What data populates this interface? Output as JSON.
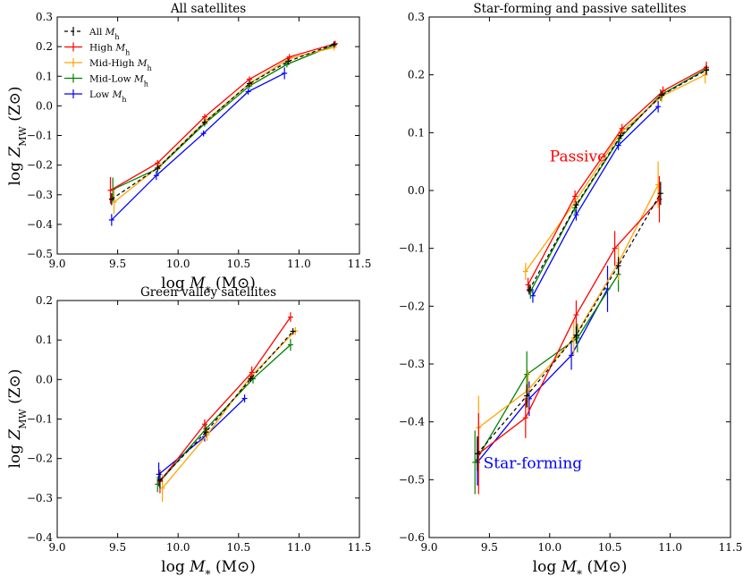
{
  "colors": {
    "all": "#000000",
    "high": "#ff0000",
    "midhigh": "#ffa500",
    "midlow": "#008000",
    "low": "#0000ff"
  },
  "chart_data": [
    {
      "id": "p1",
      "type": "line",
      "title": "All satellites",
      "xlabel": "log M* (M⊙)",
      "ylabel": "log Z_MW (Z⊙)",
      "xlim": [
        9.0,
        11.5
      ],
      "ylim": [
        -0.5,
        0.3
      ],
      "xticks": [
        9.0,
        9.5,
        10.0,
        10.5,
        11.0,
        11.5
      ],
      "xtick_labels": [
        "9.0",
        "9.5",
        "10.0",
        "10.5",
        "11.0",
        "11.5"
      ],
      "yticks": [
        -0.5,
        -0.4,
        -0.3,
        -0.2,
        -0.1,
        0.0,
        0.1,
        0.2,
        0.3
      ],
      "ytick_labels": [
        "−0.5",
        "−0.4",
        "−0.3",
        "−0.2",
        "−0.1",
        "0.0",
        "0.1",
        "0.2",
        "0.3"
      ],
      "legend": {
        "position": "top-left",
        "entries": [
          {
            "key": "all",
            "label": "All Mh"
          },
          {
            "key": "high",
            "label": "High Mh"
          },
          {
            "key": "midhigh",
            "label": "Mid-High Mh"
          },
          {
            "key": "midlow",
            "label": "Mid-Low Mh"
          },
          {
            "key": "low",
            "label": "Low Mh"
          }
        ]
      },
      "series": [
        {
          "key": "low",
          "points": [
            [
              9.45,
              -0.385,
              0.02
            ],
            [
              9.82,
              -0.235,
              0.015
            ],
            [
              10.21,
              -0.093,
              0.01
            ],
            [
              10.58,
              0.048,
              0.01
            ],
            [
              10.88,
              0.11,
              0.02
            ]
          ]
        },
        {
          "key": "midlow",
          "points": [
            [
              9.46,
              -0.282,
              0.04
            ],
            [
              9.83,
              -0.212,
              0.015
            ],
            [
              10.22,
              -0.06,
              0.01
            ],
            [
              10.59,
              0.067,
              0.01
            ],
            [
              10.9,
              0.14,
              0.01
            ],
            [
              11.29,
              0.205,
              0.01
            ]
          ]
        },
        {
          "key": "midhigh",
          "points": [
            [
              9.47,
              -0.325,
              0.04
            ],
            [
              9.84,
              -0.205,
              0.01
            ],
            [
              10.23,
              -0.05,
              0.01
            ],
            [
              10.6,
              0.078,
              0.01
            ],
            [
              10.92,
              0.16,
              0.01
            ],
            [
              11.29,
              0.197,
              0.01
            ]
          ]
        },
        {
          "key": "high",
          "points": [
            [
              9.44,
              -0.285,
              0.045
            ],
            [
              9.83,
              -0.193,
              0.01
            ],
            [
              10.22,
              -0.037,
              0.01
            ],
            [
              10.59,
              0.09,
              0.01
            ],
            [
              10.92,
              0.165,
              0.01
            ],
            [
              11.3,
              0.21,
              0.01
            ]
          ]
        },
        {
          "key": "all",
          "dashed": true,
          "points": [
            [
              9.45,
              -0.315,
              0.02
            ],
            [
              9.83,
              -0.21,
              0.01
            ],
            [
              10.22,
              -0.055,
              0.01
            ],
            [
              10.59,
              0.075,
              0.01
            ],
            [
              10.91,
              0.15,
              0.01
            ],
            [
              11.29,
              0.208,
              0.01
            ]
          ]
        }
      ]
    },
    {
      "id": "p2",
      "type": "line",
      "title": "Green valley satellites",
      "xlabel": "log M* (M⊙)",
      "ylabel": "log Z_MW (Z⊙)",
      "xlim": [
        9.0,
        11.5
      ],
      "ylim": [
        -0.4,
        0.2
      ],
      "xticks": [
        9.0,
        9.5,
        10.0,
        10.5,
        11.0,
        11.5
      ],
      "xtick_labels": [
        "9.0",
        "9.5",
        "10.0",
        "10.5",
        "11.0",
        "11.5"
      ],
      "yticks": [
        -0.4,
        -0.3,
        -0.2,
        -0.1,
        0.0,
        0.1,
        0.2
      ],
      "ytick_labels": [
        "−0.4",
        "−0.3",
        "−0.2",
        "−0.1",
        "0.0",
        "0.1",
        "0.2"
      ],
      "series": [
        {
          "key": "low",
          "points": [
            [
              9.84,
              -0.24,
              0.03
            ],
            [
              10.22,
              -0.145,
              0.012
            ],
            [
              10.55,
              -0.048,
              0.01
            ]
          ]
        },
        {
          "key": "midlow",
          "points": [
            [
              9.83,
              -0.265,
              0.02
            ],
            [
              10.23,
              -0.125,
              0.012
            ],
            [
              10.62,
              0.002,
              0.012
            ],
            [
              10.93,
              0.088,
              0.015
            ]
          ]
        },
        {
          "key": "midhigh",
          "points": [
            [
              9.87,
              -0.275,
              0.035
            ],
            [
              10.24,
              -0.14,
              0.015
            ],
            [
              10.6,
              0.007,
              0.012
            ],
            [
              10.97,
              0.123,
              0.01
            ]
          ]
        },
        {
          "key": "high",
          "points": [
            [
              9.85,
              -0.258,
              0.03
            ],
            [
              10.22,
              -0.113,
              0.012
            ],
            [
              10.61,
              0.018,
              0.015
            ],
            [
              10.93,
              0.158,
              0.012
            ]
          ]
        },
        {
          "key": "all",
          "dashed": true,
          "points": [
            [
              9.85,
              -0.255,
              0.02
            ],
            [
              10.23,
              -0.133,
              0.01
            ],
            [
              10.6,
              0.002,
              0.008
            ],
            [
              10.95,
              0.122,
              0.008
            ]
          ]
        }
      ]
    },
    {
      "id": "p3",
      "type": "line",
      "title": "Star-forming and passive satellites",
      "xlabel": "log M* (M⊙)",
      "ylabel": "",
      "xlim": [
        9.0,
        11.5
      ],
      "ylim": [
        -0.6,
        0.3
      ],
      "xticks": [
        9.0,
        9.5,
        10.0,
        10.5,
        11.0,
        11.5
      ],
      "xtick_labels": [
        "9.0",
        "9.5",
        "10.0",
        "10.5",
        "11.0",
        "11.5"
      ],
      "yticks": [
        -0.6,
        -0.5,
        -0.4,
        -0.3,
        -0.2,
        -0.1,
        0.0,
        0.1,
        0.2,
        0.3
      ],
      "ytick_labels": [
        "−0.6",
        "−0.5",
        "−0.4",
        "−0.3",
        "−0.2",
        "−0.1",
        "0.0",
        "0.1",
        "0.2",
        "0.3"
      ],
      "annotations": [
        {
          "text": "Passive",
          "x": 10.0,
          "y": 0.05,
          "color": "#ff0000"
        },
        {
          "text": "Star-forming",
          "x": 9.45,
          "y": -0.48,
          "color": "#0000ff"
        }
      ],
      "series": [
        {
          "key": "low",
          "points": [
            [
              9.86,
              -0.182,
              0.012
            ],
            [
              10.22,
              -0.042,
              0.01
            ],
            [
              10.57,
              0.078,
              0.008
            ],
            [
              10.9,
              0.145,
              0.01
            ]
          ]
        },
        {
          "key": "midlow",
          "points": [
            [
              9.84,
              -0.175,
              0.012
            ],
            [
              10.21,
              -0.03,
              0.01
            ],
            [
              10.58,
              0.09,
              0.008
            ],
            [
              10.92,
              0.165,
              0.01
            ],
            [
              11.3,
              0.21,
              0.01
            ]
          ]
        },
        {
          "key": "midhigh",
          "points": [
            [
              9.8,
              -0.14,
              0.015
            ],
            [
              10.21,
              -0.02,
              0.01
            ],
            [
              10.59,
              0.1,
              0.008
            ],
            [
              10.93,
              0.163,
              0.01
            ],
            [
              11.29,
              0.2,
              0.015
            ]
          ]
        },
        {
          "key": "high",
          "points": [
            [
              9.82,
              -0.163,
              0.012
            ],
            [
              10.21,
              -0.01,
              0.01
            ],
            [
              10.6,
              0.107,
              0.008
            ],
            [
              10.94,
              0.172,
              0.008
            ],
            [
              11.3,
              0.213,
              0.01
            ]
          ]
        },
        {
          "key": "all",
          "dashed": true,
          "points": [
            [
              9.83,
              -0.172,
              0.008
            ],
            [
              10.22,
              -0.025,
              0.006
            ],
            [
              10.59,
              0.095,
              0.005
            ],
            [
              10.93,
              0.165,
              0.005
            ],
            [
              11.3,
              0.208,
              0.008
            ]
          ]
        },
        {
          "key": "low",
          "points": [
            [
              9.4,
              -0.47,
              0.04
            ],
            [
              9.83,
              -0.36,
              0.03
            ],
            [
              10.18,
              -0.285,
              0.025
            ],
            [
              10.48,
              -0.17,
              0.04
            ]
          ]
        },
        {
          "key": "midlow",
          "points": [
            [
              9.38,
              -0.47,
              0.055
            ],
            [
              9.81,
              -0.318,
              0.04
            ],
            [
              10.23,
              -0.255,
              0.025
            ],
            [
              10.57,
              -0.145,
              0.03
            ]
          ]
        },
        {
          "key": "midhigh",
          "points": [
            [
              9.41,
              -0.41,
              0.055
            ],
            [
              9.82,
              -0.345,
              0.035
            ],
            [
              10.2,
              -0.255,
              0.03
            ],
            [
              10.57,
              -0.125,
              0.03
            ],
            [
              10.9,
              0.01,
              0.04
            ]
          ]
        },
        {
          "key": "high",
          "points": [
            [
              9.41,
              -0.455,
              0.07
            ],
            [
              9.8,
              -0.393,
              0.035
            ],
            [
              10.22,
              -0.215,
              0.025
            ],
            [
              10.54,
              -0.1,
              0.03
            ],
            [
              10.91,
              -0.015,
              0.04
            ]
          ]
        },
        {
          "key": "all",
          "dashed": true,
          "points": [
            [
              9.4,
              -0.455,
              0.03
            ],
            [
              9.81,
              -0.355,
              0.02
            ],
            [
              10.22,
              -0.25,
              0.015
            ],
            [
              10.57,
              -0.13,
              0.015
            ],
            [
              10.92,
              -0.005,
              0.02
            ]
          ]
        }
      ]
    }
  ]
}
